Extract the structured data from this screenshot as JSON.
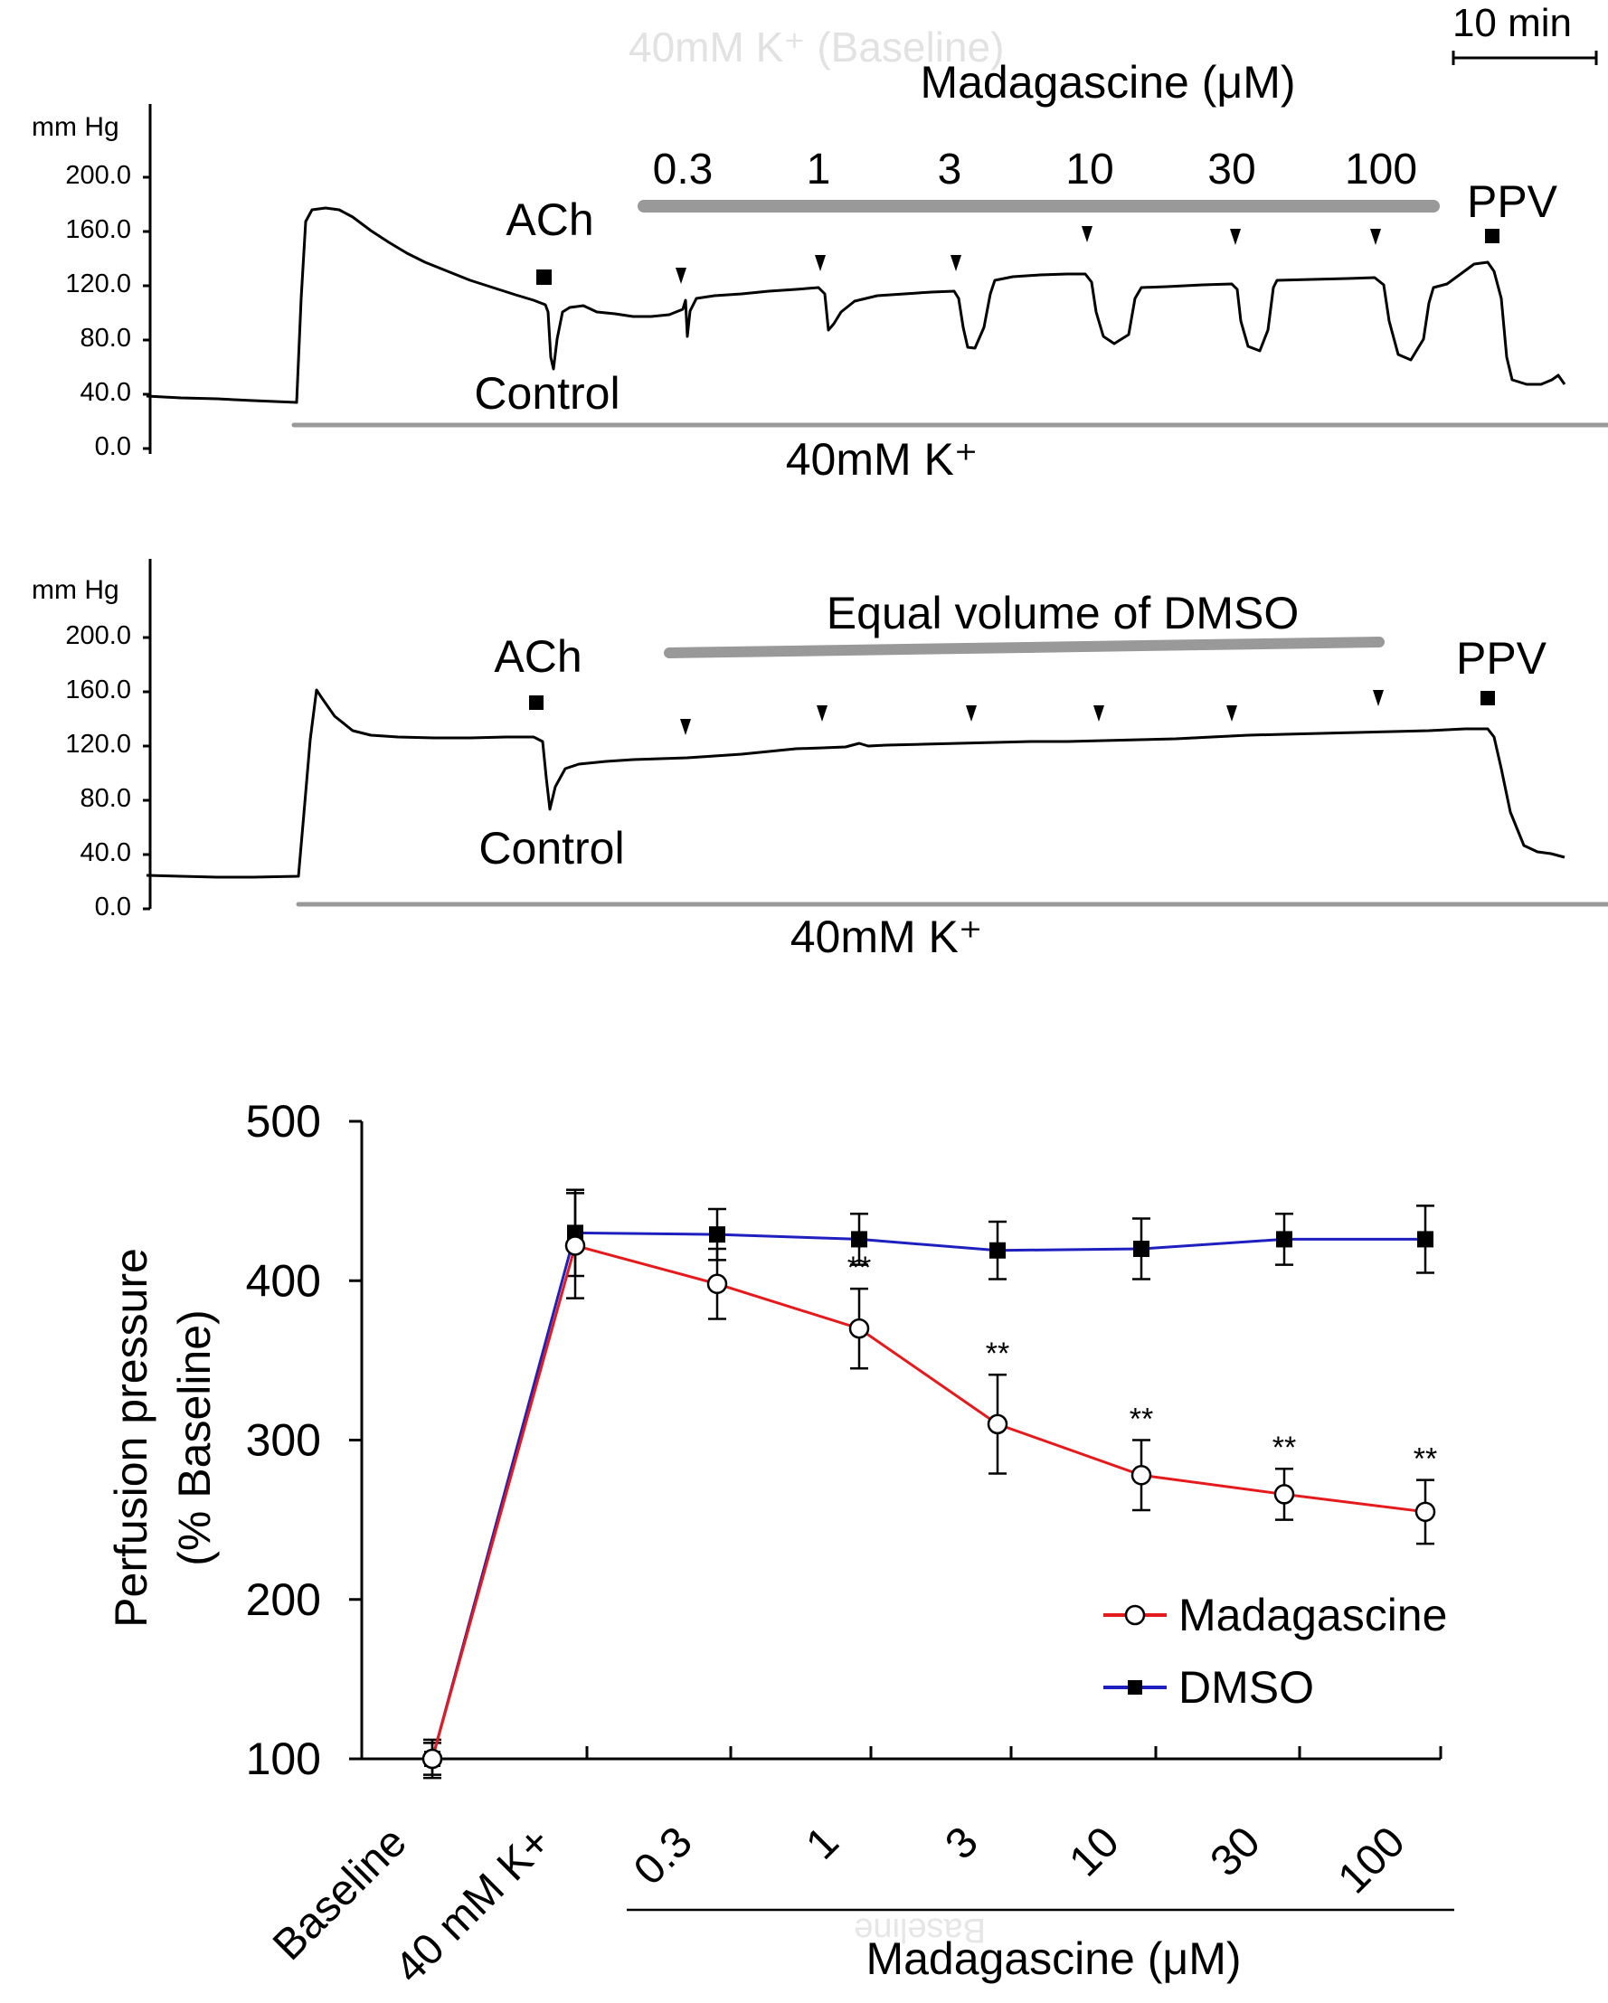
{
  "colors": {
    "madagascine": "#e41a1c",
    "dmso": "#1f1fbf",
    "grey_bar": "#999999",
    "faint_text": "#dcdcdc"
  },
  "scale_bar": {
    "label": "10 min"
  },
  "faint_text": {
    "top": "40mM K⁺ (Baseline)",
    "bottom": "Baseline"
  },
  "trace_top": {
    "y_unit": "mm Hg",
    "y_ticks": [
      "200.0",
      "160.0",
      "120.0",
      "80.0",
      "40.0",
      "0.0"
    ],
    "treatment_title": "Madagascine (μM)",
    "doses": [
      "0.3",
      "1",
      "3",
      "10",
      "30",
      "100"
    ],
    "ach_label": "ACh",
    "control_label": "Control",
    "ppv_label": "PPV",
    "k_label": "40mM K⁺"
  },
  "trace_bottom": {
    "y_unit": "mm Hg",
    "y_ticks": [
      "200.0",
      "160.0",
      "120.0",
      "80.0",
      "40.0",
      "0.0"
    ],
    "treatment_title": "Equal volume of DMSO",
    "ach_label": "ACh",
    "control_label": "Control",
    "ppv_label": "PPV",
    "k_label": "40mM K⁺"
  },
  "chart_data": [
    {
      "type": "line",
      "title": "",
      "xlabel": "Madagascine (μM)",
      "ylabel": "Perfusion pressure",
      "ylabel2": "(% Baseline)",
      "ylim": [
        100,
        500
      ],
      "y_ticks": [
        "500",
        "400",
        "300",
        "200",
        "100"
      ],
      "y_tick_values": [
        500,
        400,
        300,
        200,
        100
      ],
      "categories": [
        "Baseline",
        "40 mM K+",
        "0.3",
        "1",
        "3",
        "10",
        "30",
        "100"
      ],
      "legend_position": "bottom-right",
      "significance_label": "**",
      "series": [
        {
          "name": "Madagascine",
          "marker": "open-circle",
          "values": [
            100,
            422,
            398,
            370,
            310,
            278,
            266,
            255
          ],
          "error": [
            12,
            33,
            22,
            25,
            31,
            22,
            16,
            20
          ],
          "significance": [
            false,
            false,
            false,
            true,
            true,
            true,
            true,
            true
          ]
        },
        {
          "name": "DMSO",
          "marker": "filled-square",
          "values": [
            100,
            430,
            429,
            426,
            419,
            420,
            426,
            426
          ],
          "error": [
            10,
            27,
            16,
            16,
            18,
            19,
            16,
            21
          ],
          "significance": [
            false,
            false,
            false,
            false,
            false,
            false,
            false,
            false
          ]
        }
      ]
    }
  ]
}
